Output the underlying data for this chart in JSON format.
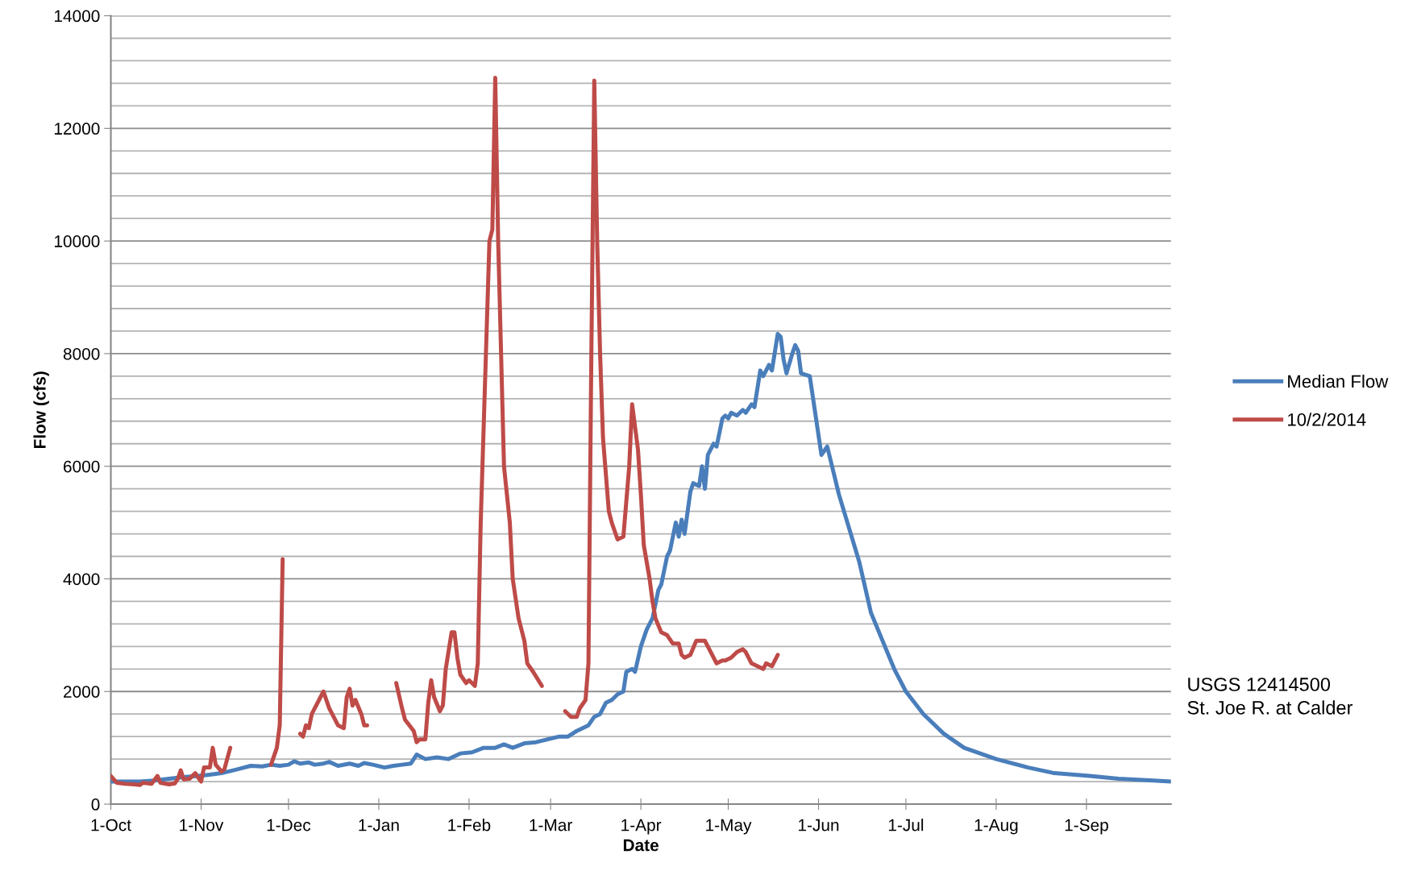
{
  "chart_data": {
    "type": "line",
    "xlabel": "Date",
    "ylabel": "Flow (cfs)",
    "xlim": [
      "2014-10-01",
      "2015-09-30"
    ],
    "xticks": [
      {
        "value": "2014-10-01",
        "label": "1-Oct"
      },
      {
        "value": "2014-11-01",
        "label": "1-Nov"
      },
      {
        "value": "2014-12-01",
        "label": "1-Dec"
      },
      {
        "value": "2015-01-01",
        "label": "1-Jan"
      },
      {
        "value": "2015-02-01",
        "label": "1-Feb"
      },
      {
        "value": "2015-03-01",
        "label": "1-Mar"
      },
      {
        "value": "2015-04-01",
        "label": "1-Apr"
      },
      {
        "value": "2015-05-01",
        "label": "1-May"
      },
      {
        "value": "2015-06-01",
        "label": "1-Jun"
      },
      {
        "value": "2015-07-01",
        "label": "1-Jul"
      },
      {
        "value": "2015-08-01",
        "label": "1-Aug"
      },
      {
        "value": "2015-09-01",
        "label": "1-Sep"
      }
    ],
    "ylim": [
      0,
      14000
    ],
    "yticks": [
      0,
      2000,
      4000,
      6000,
      8000,
      10000,
      12000,
      14000
    ],
    "grid": "y",
    "legend": "right",
    "line_style": "solid",
    "marker": "none",
    "annotations": [
      "USGS 12414500\nSt. Joe R. at Calder"
    ],
    "series": [
      {
        "name": "Median Flow",
        "color": "#4a7ebb",
        "x": [
          "2014-10-01",
          "2014-10-06",
          "2014-10-11",
          "2014-10-16",
          "2014-10-21",
          "2014-10-26",
          "2014-10-31",
          "2014-11-05",
          "2014-11-08",
          "2014-11-12",
          "2014-11-15",
          "2014-11-18",
          "2014-11-22",
          "2014-11-25",
          "2014-11-28",
          "2014-12-01",
          "2014-12-03",
          "2014-12-05",
          "2014-12-08",
          "2014-12-10",
          "2014-12-13",
          "2014-12-15",
          "2014-12-18",
          "2014-12-22",
          "2014-12-25",
          "2014-12-27",
          "2014-12-30",
          "2015-01-03",
          "2015-01-06",
          "2015-01-09",
          "2015-01-12",
          "2015-01-14",
          "2015-01-17",
          "2015-01-21",
          "2015-01-25",
          "2015-01-29",
          "2015-02-02",
          "2015-02-06",
          "2015-02-10",
          "2015-02-13",
          "2015-02-16",
          "2015-02-20",
          "2015-02-24",
          "2015-02-28",
          "2015-03-04",
          "2015-03-07",
          "2015-03-10",
          "2015-03-12",
          "2015-03-14",
          "2015-03-16",
          "2015-03-18",
          "2015-03-20",
          "2015-03-22",
          "2015-03-24",
          "2015-03-26",
          "2015-03-27",
          "2015-03-29",
          "2015-03-30",
          "2015-04-01",
          "2015-04-03",
          "2015-04-05",
          "2015-04-07",
          "2015-04-08",
          "2015-04-10",
          "2015-04-11",
          "2015-04-13",
          "2015-04-14",
          "2015-04-15",
          "2015-04-16",
          "2015-04-18",
          "2015-04-19",
          "2015-04-21",
          "2015-04-22",
          "2015-04-23",
          "2015-04-24",
          "2015-04-26",
          "2015-04-27",
          "2015-04-29",
          "2015-04-30",
          "2015-05-01",
          "2015-05-02",
          "2015-05-04",
          "2015-05-06",
          "2015-05-07",
          "2015-05-09",
          "2015-05-10",
          "2015-05-12",
          "2015-05-13",
          "2015-05-15",
          "2015-05-16",
          "2015-05-18",
          "2015-05-19",
          "2015-05-20",
          "2015-05-21",
          "2015-05-23",
          "2015-05-24",
          "2015-05-25",
          "2015-05-26",
          "2015-05-29",
          "2015-06-02",
          "2015-06-04",
          "2015-06-08",
          "2015-06-15",
          "2015-06-19",
          "2015-06-23",
          "2015-06-27",
          "2015-07-01",
          "2015-07-07",
          "2015-07-14",
          "2015-07-21",
          "2015-08-01",
          "2015-08-12",
          "2015-08-21",
          "2015-09-02",
          "2015-09-12",
          "2015-09-24",
          "2015-09-30"
        ],
        "values": [
          400,
          400,
          400,
          420,
          450,
          480,
          500,
          530,
          550,
          600,
          640,
          680,
          670,
          700,
          680,
          700,
          760,
          720,
          740,
          700,
          720,
          750,
          680,
          720,
          680,
          730,
          700,
          650,
          680,
          700,
          720,
          880,
          800,
          830,
          800,
          900,
          920,
          1000,
          1000,
          1060,
          1000,
          1080,
          1100,
          1150,
          1200,
          1200,
          1300,
          1350,
          1400,
          1550,
          1600,
          1800,
          1850,
          1950,
          2000,
          2350,
          2400,
          2350,
          2800,
          3100,
          3300,
          3800,
          3900,
          4400,
          4500,
          5000,
          4750,
          5050,
          4800,
          5550,
          5700,
          5650,
          6000,
          5600,
          6200,
          6400,
          6350,
          6850,
          6900,
          6850,
          6950,
          6900,
          7000,
          6950,
          7100,
          7050,
          7700,
          7600,
          7800,
          7700,
          8350,
          8300,
          7900,
          7650,
          8000,
          8150,
          8050,
          7650,
          7600,
          6200,
          6350,
          5500,
          4300,
          3400,
          2900,
          2400,
          2000,
          1600,
          1250,
          1000,
          800,
          650,
          550,
          500,
          450,
          420,
          400
        ]
      },
      {
        "name": "10/2/2014",
        "color": "#be4b48",
        "x": [
          "2014-10-01",
          "2014-10-03",
          "2014-10-06",
          "2014-10-09",
          "2014-10-11",
          "2014-10-12",
          "2014-10-15",
          "2014-10-17",
          "2014-10-18",
          "2014-10-21",
          "2014-10-23",
          "2014-10-24",
          "2014-10-25",
          "2014-10-26",
          "2014-10-28",
          "2014-10-30",
          "2014-10-31",
          "2014-11-01",
          "2014-11-02",
          "2014-11-04",
          "2014-11-05",
          "2014-11-06",
          "2014-11-08",
          "2014-11-09",
          "2014-11-11",
          "2014-11-12",
          "2014-11-25",
          "2014-11-27",
          "2014-11-28",
          "2014-11-29",
          "2014-11-30",
          "2014-12-05",
          "2014-12-06",
          "2014-12-07",
          "2014-12-08",
          "2014-12-09",
          "2014-12-13",
          "2014-12-15",
          "2014-12-17",
          "2014-12-18",
          "2014-12-20",
          "2014-12-21",
          "2014-12-22",
          "2014-12-23",
          "2014-12-24",
          "2014-12-26",
          "2014-12-27",
          "2014-12-28",
          "2015-01-01",
          "2015-01-07",
          "2015-01-09",
          "2015-01-10",
          "2015-01-13",
          "2015-01-14",
          "2015-01-15",
          "2015-01-17",
          "2015-01-18",
          "2015-01-19",
          "2015-01-20",
          "2015-01-22",
          "2015-01-23",
          "2015-01-24",
          "2015-01-26",
          "2015-01-27",
          "2015-01-28",
          "2015-01-29",
          "2015-01-31",
          "2015-02-01",
          "2015-02-03",
          "2015-02-04",
          "2015-02-05",
          "2015-02-08",
          "2015-02-09",
          "2015-02-10",
          "2015-02-11",
          "2015-02-12",
          "2015-02-13",
          "2015-02-15",
          "2015-02-16",
          "2015-02-18",
          "2015-02-20",
          "2015-02-21",
          "2015-02-23",
          "2015-02-26",
          "2015-02-28",
          "2015-03-06",
          "2015-03-08",
          "2015-03-10",
          "2015-03-11",
          "2015-03-13",
          "2015-03-14",
          "2015-03-15",
          "2015-03-16",
          "2015-03-17",
          "2015-03-18",
          "2015-03-19",
          "2015-03-21",
          "2015-03-22",
          "2015-03-24",
          "2015-03-26",
          "2015-03-28",
          "2015-03-29",
          "2015-03-31",
          "2015-04-01",
          "2015-04-02",
          "2015-04-04",
          "2015-04-05",
          "2015-04-06",
          "2015-04-08",
          "2015-04-10",
          "2015-04-12",
          "2015-04-14",
          "2015-04-15",
          "2015-04-16",
          "2015-04-18",
          "2015-04-20",
          "2015-04-23",
          "2015-04-25",
          "2015-04-27",
          "2015-04-29",
          "2015-04-30",
          "2015-05-02",
          "2015-05-04",
          "2015-05-06",
          "2015-05-07",
          "2015-05-09",
          "2015-05-11",
          "2015-05-13",
          "2015-05-14",
          "2015-05-16",
          "2015-05-18"
        ],
        "values": [
          500,
          380,
          360,
          350,
          340,
          380,
          360,
          500,
          380,
          350,
          370,
          450,
          600,
          440,
          450,
          550,
          470,
          400,
          650,
          650,
          1000,
          700,
          580,
          620,
          1000,
          null,
          700,
          1000,
          1400,
          4350,
          null,
          1250,
          1200,
          1400,
          1350,
          1600,
          2000,
          1700,
          1500,
          1400,
          1350,
          1900,
          2050,
          1750,
          1850,
          1600,
          1400,
          1400,
          null,
          2150,
          1700,
          1500,
          1300,
          1100,
          1150,
          1150,
          1800,
          2200,
          1900,
          1650,
          1750,
          2400,
          3050,
          3050,
          2600,
          2300,
          2150,
          2200,
          2100,
          2500,
          5000,
          10000,
          10200,
          12900,
          10000,
          8000,
          6000,
          5000,
          4000,
          3300,
          2900,
          2500,
          2350,
          2100,
          null,
          1650,
          1550,
          1550,
          1700,
          1850,
          2500,
          8000,
          12850,
          10000,
          8000,
          6500,
          5200,
          5000,
          4700,
          4750,
          6000,
          7100,
          6300,
          5500,
          4600,
          4000,
          3600,
          3300,
          3050,
          3000,
          2850,
          2850,
          2650,
          2600,
          2650,
          2900,
          2900,
          2700,
          2500,
          2550,
          2550,
          2600,
          2700,
          2750,
          2700,
          2500,
          2450,
          2400,
          2500,
          2450,
          2650
        ]
      }
    ]
  }
}
